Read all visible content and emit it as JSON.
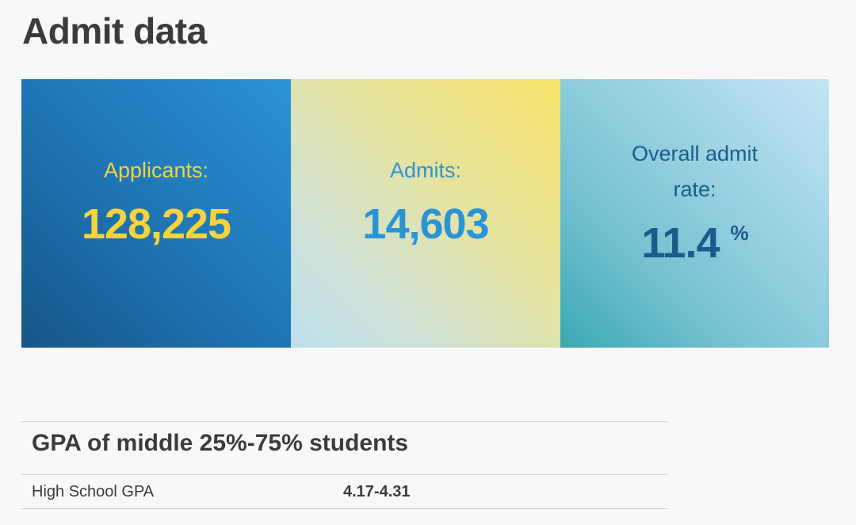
{
  "page": {
    "title": "Admit data"
  },
  "stats": {
    "applicants": {
      "label": "Applicants:",
      "value": "128,225"
    },
    "admits": {
      "label": "Admits:",
      "value": "14,603"
    },
    "admit_rate": {
      "label": "Overall admit rate:",
      "value": "11.4",
      "unit": "%"
    }
  },
  "gpa": {
    "heading": "GPA of middle 25%-75% students",
    "rows": [
      {
        "label": "High School GPA",
        "value": "4.17-4.31"
      }
    ]
  },
  "colors": {
    "applicants_card": "#2079ba",
    "applicants_text": "#f7d33c",
    "admits_card": "#e6e39c",
    "admits_text": "#2a94d6",
    "rate_card": "#72c0cf",
    "rate_text": "#1a5c8c"
  }
}
